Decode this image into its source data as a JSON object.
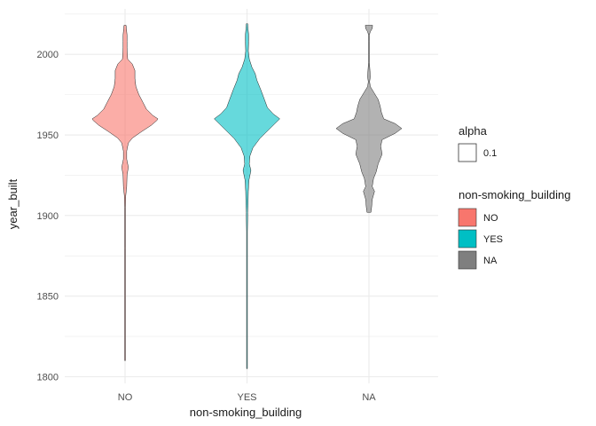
{
  "chart_data": {
    "type": "violin",
    "xlabel": "non-smoking_building",
    "ylabel": "year_built",
    "ylim": [
      1795,
      2020
    ],
    "yticks": [
      1800,
      1850,
      1900,
      1950,
      2000
    ],
    "categories": [
      "NO",
      "YES",
      "NA"
    ],
    "colors": {
      "NO": "#F8766D",
      "YES": "#00BFC4",
      "NA": "#7F7F7F"
    },
    "fill_alpha": 0.6,
    "grid": true,
    "legend_position": "right",
    "legends": [
      {
        "title": "alpha",
        "entries": [
          {
            "label": "0.1",
            "key": "blank"
          }
        ]
      },
      {
        "title": "non-smoking_building",
        "entries": [
          {
            "label": "NO",
            "color": "#F8766D"
          },
          {
            "label": "YES",
            "color": "#00BFC4"
          },
          {
            "label": "NA",
            "color": "#7F7F7F"
          }
        ]
      }
    ],
    "violins": [
      {
        "category": "NO",
        "y_min": 1810,
        "y_max": 2018,
        "profile": [
          [
            1810,
            0.002
          ],
          [
            1850,
            0.002
          ],
          [
            1880,
            0.003
          ],
          [
            1890,
            0.006
          ],
          [
            1905,
            0.008
          ],
          [
            1912,
            0.02
          ],
          [
            1918,
            0.05
          ],
          [
            1925,
            0.06
          ],
          [
            1930,
            0.1
          ],
          [
            1935,
            0.05
          ],
          [
            1940,
            0.05
          ],
          [
            1945,
            0.1
          ],
          [
            1948,
            0.22
          ],
          [
            1952,
            0.5
          ],
          [
            1956,
            0.8
          ],
          [
            1959,
            0.97
          ],
          [
            1960,
            1.0
          ],
          [
            1962,
            0.85
          ],
          [
            1966,
            0.65
          ],
          [
            1970,
            0.55
          ],
          [
            1975,
            0.42
          ],
          [
            1980,
            0.33
          ],
          [
            1985,
            0.3
          ],
          [
            1990,
            0.3
          ],
          [
            1994,
            0.22
          ],
          [
            1997,
            0.08
          ],
          [
            2000,
            0.07
          ],
          [
            2004,
            0.06
          ],
          [
            2008,
            0.06
          ],
          [
            2012,
            0.06
          ],
          [
            2016,
            0.04
          ],
          [
            2018,
            0.03
          ]
        ]
      },
      {
        "category": "YES",
        "y_min": 1805,
        "y_max": 2019,
        "profile": [
          [
            1805,
            0.002
          ],
          [
            1860,
            0.003
          ],
          [
            1890,
            0.004
          ],
          [
            1898,
            0.02
          ],
          [
            1902,
            0.02
          ],
          [
            1906,
            0.03
          ],
          [
            1915,
            0.04
          ],
          [
            1922,
            0.06
          ],
          [
            1928,
            0.12
          ],
          [
            1932,
            0.07
          ],
          [
            1937,
            0.09
          ],
          [
            1942,
            0.18
          ],
          [
            1948,
            0.4
          ],
          [
            1953,
            0.65
          ],
          [
            1957,
            0.85
          ],
          [
            1960,
            1.0
          ],
          [
            1963,
            0.8
          ],
          [
            1967,
            0.62
          ],
          [
            1972,
            0.53
          ],
          [
            1978,
            0.42
          ],
          [
            1984,
            0.3
          ],
          [
            1988,
            0.25
          ],
          [
            1992,
            0.15
          ],
          [
            1997,
            0.07
          ],
          [
            2002,
            0.04
          ],
          [
            2008,
            0.05
          ],
          [
            2012,
            0.05
          ],
          [
            2016,
            0.03
          ],
          [
            2019,
            0.02
          ]
        ]
      },
      {
        "category": "NA",
        "y_min": 1902,
        "y_max": 2018,
        "profile": [
          [
            1902,
            0.06
          ],
          [
            1905,
            0.08
          ],
          [
            1910,
            0.1
          ],
          [
            1915,
            0.17
          ],
          [
            1918,
            0.1
          ],
          [
            1923,
            0.14
          ],
          [
            1927,
            0.22
          ],
          [
            1932,
            0.28
          ],
          [
            1938,
            0.4
          ],
          [
            1943,
            0.36
          ],
          [
            1947,
            0.4
          ],
          [
            1951,
            0.8
          ],
          [
            1954,
            1.0
          ],
          [
            1957,
            0.8
          ],
          [
            1960,
            0.45
          ],
          [
            1964,
            0.38
          ],
          [
            1968,
            0.34
          ],
          [
            1972,
            0.28
          ],
          [
            1976,
            0.16
          ],
          [
            1980,
            0.04
          ],
          [
            1983,
            0.02
          ],
          [
            1986,
            0.04
          ],
          [
            1990,
            0.03
          ],
          [
            1995,
            0.01
          ],
          [
            2000,
            0.01
          ],
          [
            2008,
            0.005
          ],
          [
            2012,
            0.005
          ],
          [
            2014,
            0.04
          ],
          [
            2016,
            0.1
          ],
          [
            2018,
            0.11
          ]
        ]
      }
    ]
  }
}
